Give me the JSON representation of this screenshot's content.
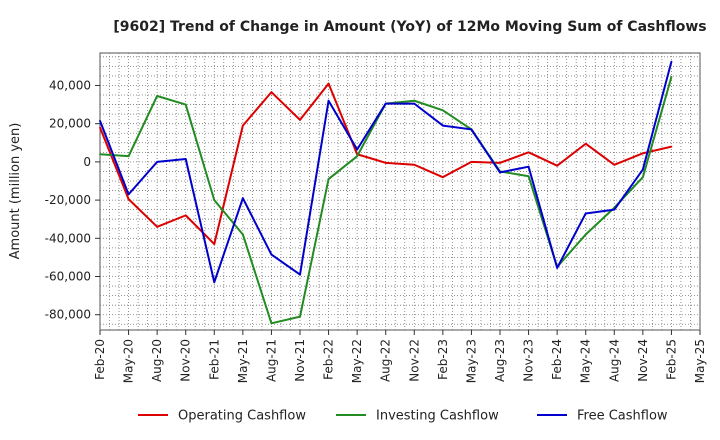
{
  "chart_data": {
    "type": "line",
    "title": "[9602]  Trend of Change in Amount (YoY) of 12Mo Moving Sum of Cashflows",
    "xlabel": "",
    "ylabel": "Amount (million yen)",
    "ylim": [
      -88000,
      57000
    ],
    "yticks": [
      -80000,
      -60000,
      -40000,
      -20000,
      0,
      20000,
      40000
    ],
    "ytick_labels": [
      "-80,000",
      "-60,000",
      "-40,000",
      "-20,000",
      "0",
      "20,000",
      "40,000"
    ],
    "categories": [
      "Feb-20",
      "May-20",
      "Aug-20",
      "Nov-20",
      "Feb-21",
      "May-21",
      "Aug-21",
      "Nov-21",
      "Feb-22",
      "May-22",
      "Aug-22",
      "Nov-22",
      "Feb-23",
      "May-23",
      "Aug-23",
      "Nov-23",
      "Feb-24",
      "May-24",
      "Aug-24",
      "Nov-24",
      "Feb-25",
      "May-25"
    ],
    "grid": true,
    "legend_position": "bottom",
    "series": [
      {
        "name": "Operating Cashflow",
        "color": "#dd0000",
        "values": [
          18000,
          -19500,
          -34000,
          -28000,
          -43000,
          19000,
          36500,
          22000,
          41000,
          4000,
          -500,
          -1500,
          -8000,
          0,
          -500,
          5000,
          -2000,
          9500,
          -1500,
          4500,
          8000,
          null
        ]
      },
      {
        "name": "Investing Cashflow",
        "color": "#228b22",
        "values": [
          4000,
          3000,
          34500,
          30000,
          -20000,
          -38000,
          -84500,
          -81000,
          -9000,
          3000,
          30500,
          32000,
          27000,
          17000,
          -5000,
          -7500,
          -55000,
          -38000,
          -24000,
          -8000,
          44500,
          null
        ]
      },
      {
        "name": "Free Cashflow",
        "color": "#0000cc",
        "values": [
          21500,
          -17000,
          0,
          1500,
          -63000,
          -19000,
          -48500,
          -59000,
          32000,
          6500,
          30500,
          30500,
          19000,
          17000,
          -5500,
          -2500,
          -55500,
          -27000,
          -25000,
          -4000,
          52500,
          null
        ]
      }
    ]
  }
}
